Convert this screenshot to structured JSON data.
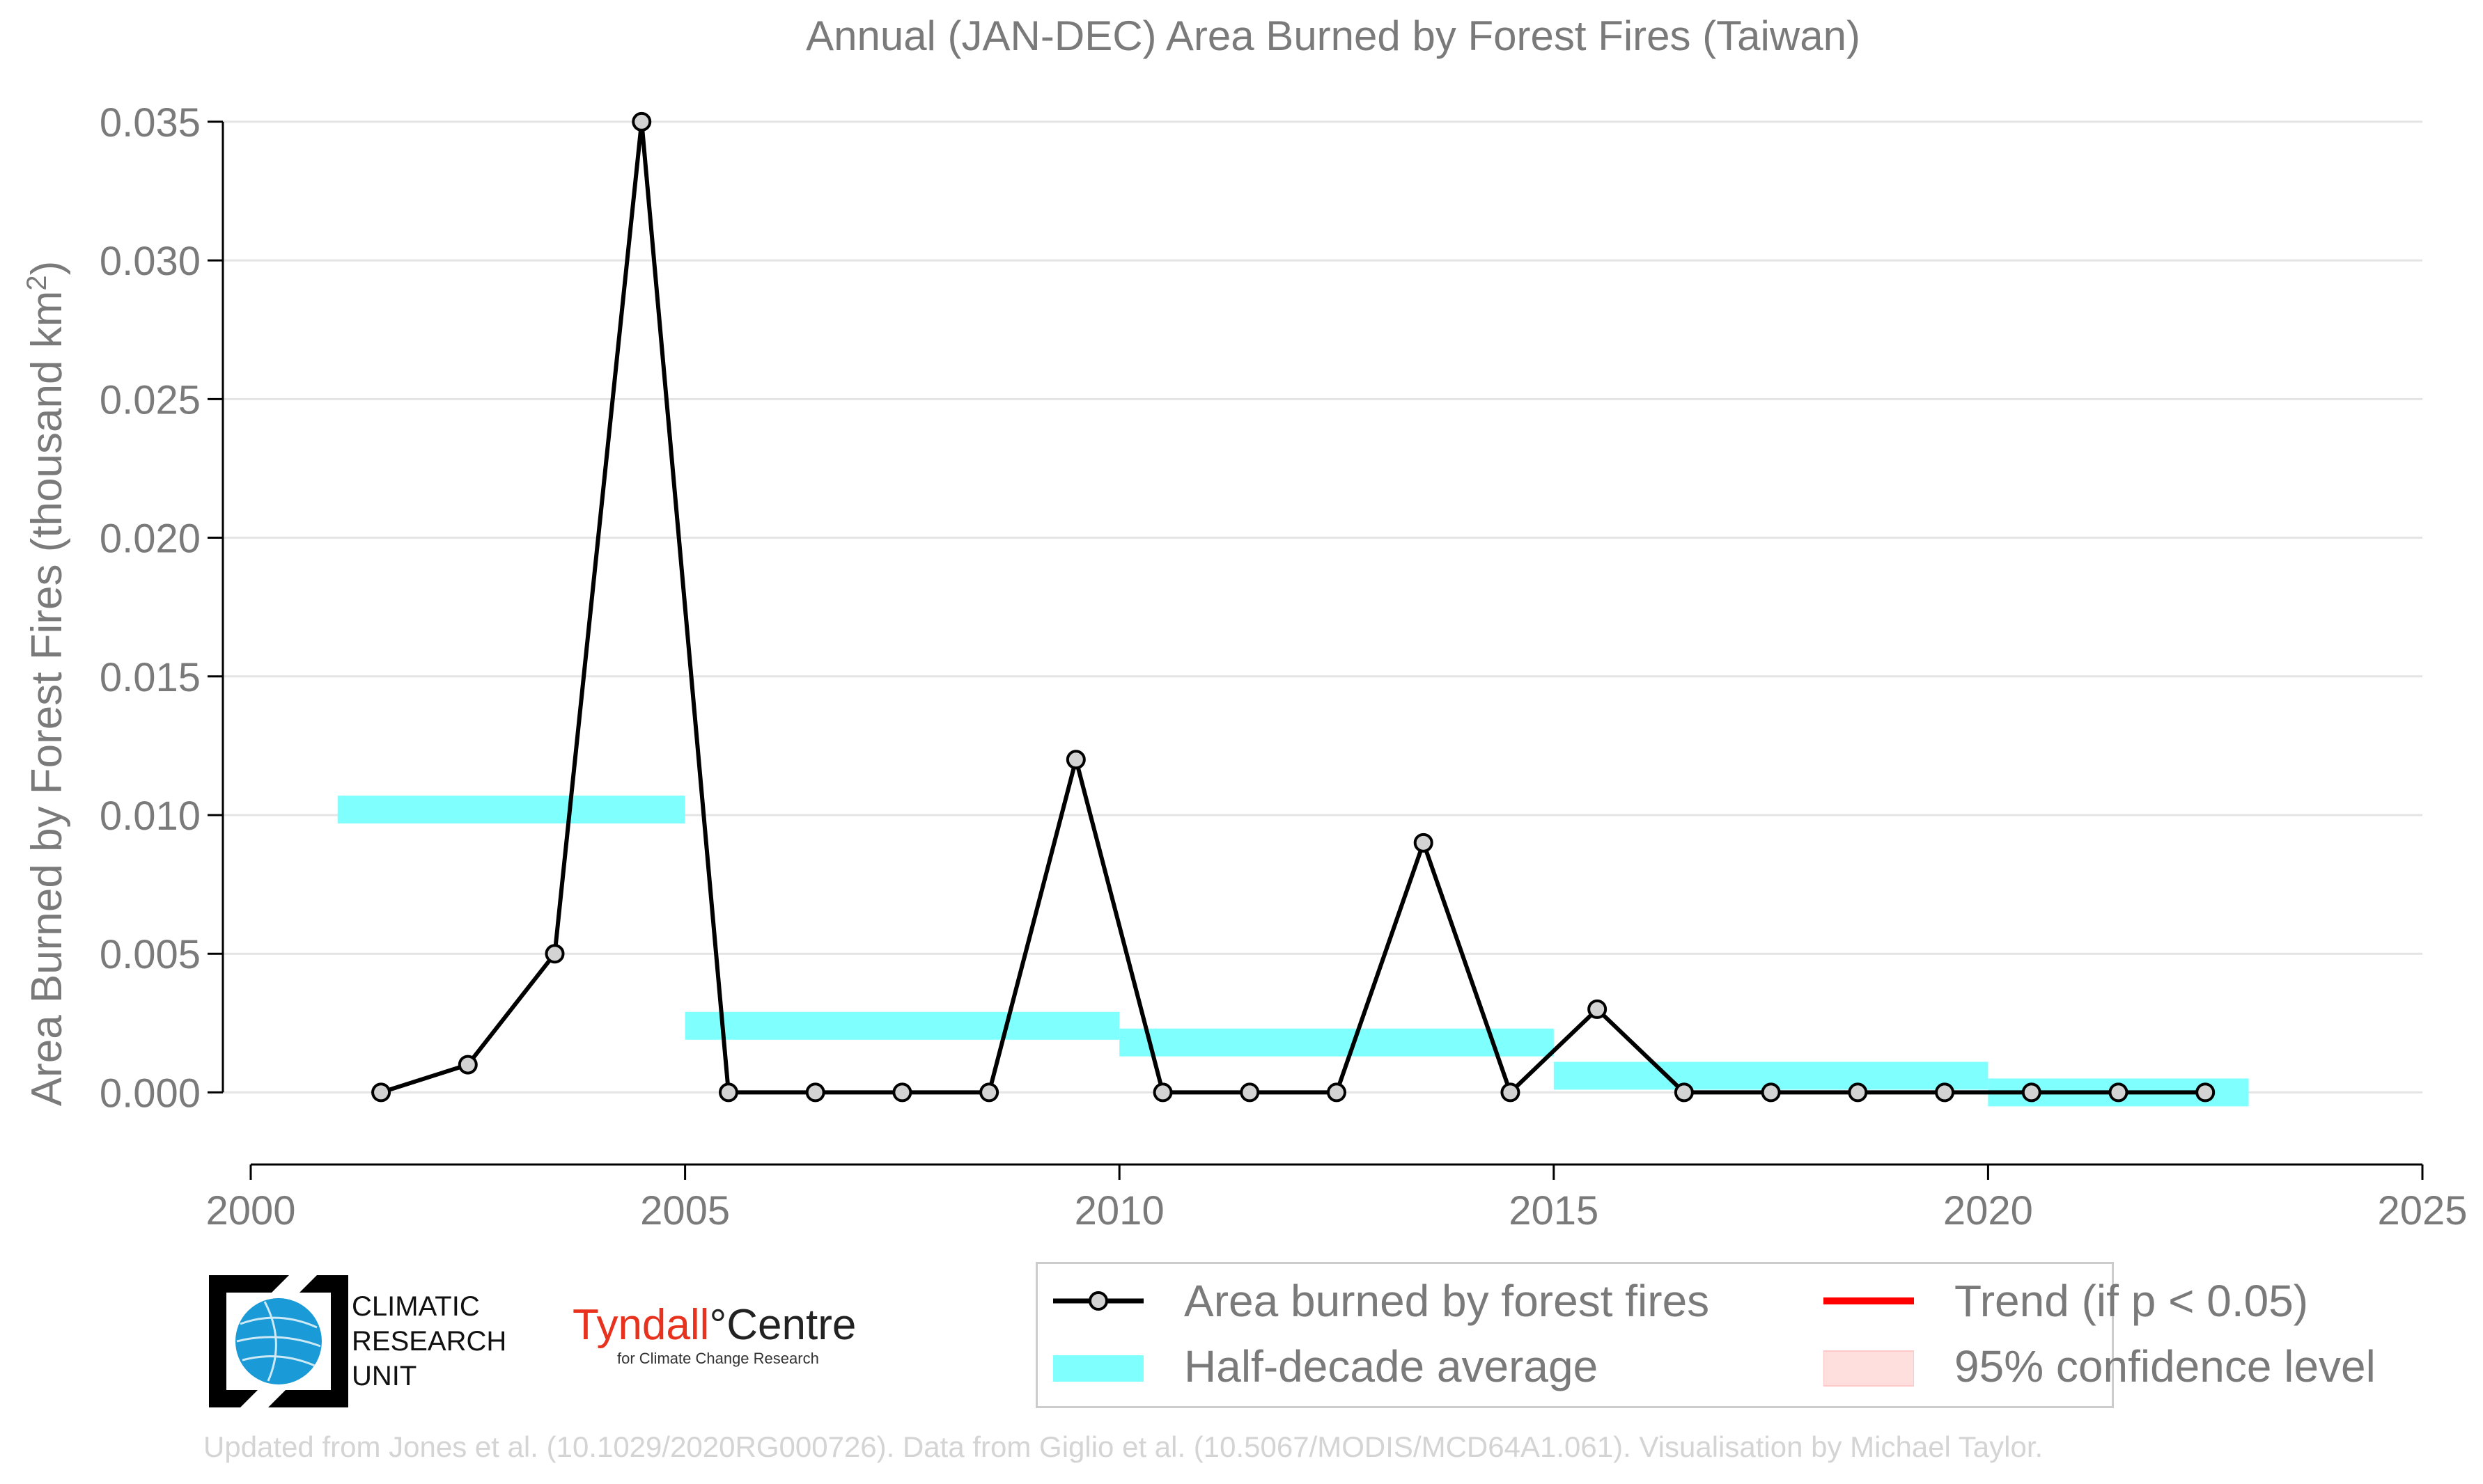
{
  "chart_data": {
    "type": "line",
    "title": "Annual (JAN-DEC) Area Burned by Forest Fires (Taiwan)",
    "ylabel": "Area Burned by Forest Fires (thousand km",
    "ylabel_sup": "2",
    "ylabel_end": ")",
    "xlim": [
      2000,
      2025
    ],
    "ylim": [
      -0.0026,
      0.0355
    ],
    "xticks": [
      2000,
      2005,
      2010,
      2015,
      2020,
      2025
    ],
    "xtick_labels": [
      "2000",
      "2005",
      "2010",
      "2015",
      "2020",
      "2025"
    ],
    "yticks": [
      0.0,
      0.005,
      0.01,
      0.015,
      0.02,
      0.025,
      0.03,
      0.035
    ],
    "ytick_labels": [
      "0.000",
      "0.005",
      "0.010",
      "0.015",
      "0.020",
      "0.025",
      "0.030",
      "0.035"
    ],
    "grid": "horizontal",
    "legend_position": "bottom-right",
    "series": [
      {
        "name": "Area burned by forest fires",
        "color": "#000000",
        "marker_fill": "#d3d3d3",
        "x": [
          2001.5,
          2002.5,
          2003.5,
          2004.5,
          2005.5,
          2006.5,
          2007.5,
          2008.5,
          2009.5,
          2010.5,
          2011.5,
          2012.5,
          2013.5,
          2014.5,
          2015.5,
          2016.5,
          2017.5,
          2018.5,
          2019.5,
          2020.5,
          2021.5,
          2022.5
        ],
        "y": [
          0.0,
          0.001,
          0.005,
          0.035,
          0.0,
          0.0,
          0.0,
          0.0,
          0.012,
          0.0,
          0.0,
          0.0,
          0.009,
          0.0,
          0.003,
          0.0,
          0.0,
          0.0,
          0.0,
          0.0,
          0.0,
          0.0
        ]
      }
    ],
    "half_decade_average": {
      "name": "Half-decade average",
      "color": "#80ffff",
      "segments": [
        {
          "x0": 2001,
          "x1": 2005,
          "y": 0.0102
        },
        {
          "x0": 2005,
          "x1": 2010,
          "y": 0.0024
        },
        {
          "x0": 2010,
          "x1": 2015,
          "y": 0.0018
        },
        {
          "x0": 2015,
          "x1": 2020,
          "y": 0.0006
        },
        {
          "x0": 2020,
          "x1": 2023,
          "y": 0.0
        }
      ]
    },
    "trend": {
      "name": "Trend (if p < 0.05)",
      "color": "#ff0000"
    },
    "confidence": {
      "name": "95% confidence level",
      "color": "#ffdede"
    }
  },
  "logos": {
    "cru_lines": [
      "CLIMATIC",
      "RESEARCH",
      "UNIT"
    ],
    "tyndall_main": "Tyndall",
    "tyndall_degree": "°",
    "tyndall_centre": "Centre",
    "tyndall_sub": "for Climate Change Research"
  },
  "footer": "Updated from Jones et al. (10.1029/2020RG000726). Data from Giglio et al. (10.5067/MODIS/MCD64A1.061). Visualisation by Michael Taylor."
}
